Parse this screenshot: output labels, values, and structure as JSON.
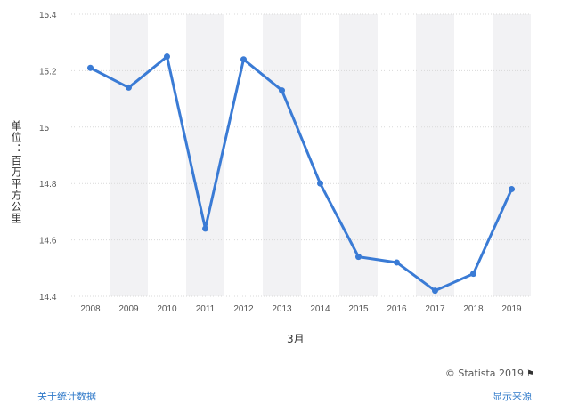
{
  "chart_data": {
    "type": "line",
    "categories": [
      "2008",
      "2009",
      "2010",
      "2011",
      "2012",
      "2013",
      "2014",
      "2015",
      "2016",
      "2017",
      "2018",
      "2019"
    ],
    "series": [
      {
        "values": [
          15.21,
          15.14,
          15.25,
          14.64,
          15.24,
          15.13,
          14.8,
          14.54,
          14.52,
          14.42,
          14.48,
          14.78
        ]
      }
    ],
    "ylim": [
      14.4,
      15.4
    ],
    "yticks": [
      14.4,
      14.6,
      14.8,
      15,
      15.2,
      15.4
    ],
    "ytick_labels": [
      "14.4",
      "14.6",
      "14.8",
      "15",
      "15.2",
      "15.4"
    ],
    "ylabel": "单位：百万平方公里",
    "xlabel": "3月",
    "grid": true,
    "line_color": "#3a7bd5",
    "band_color": "#f2f2f4"
  },
  "credit": "© Statista 2019",
  "links": {
    "about": "关于统计数据",
    "source": "显示来源"
  }
}
